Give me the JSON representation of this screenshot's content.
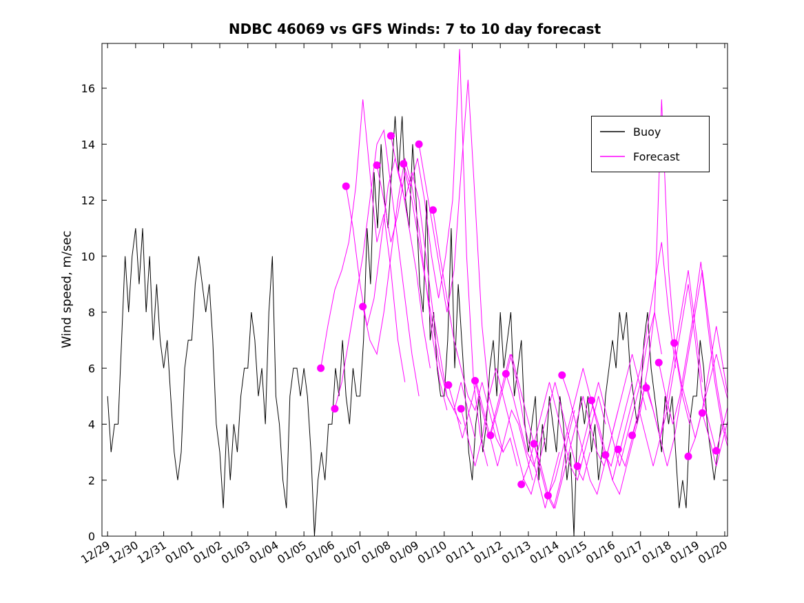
{
  "title": "NDBC 46069 vs GFS Winds: 7 to 10 day forecast",
  "ylabel": "Wind speed, m/sec",
  "legend": {
    "position": "upper right",
    "items": [
      {
        "label": "Buoy",
        "color": "#000000"
      },
      {
        "label": "Forecast",
        "color": "#ff00ff"
      }
    ]
  },
  "chart_data": {
    "type": "line",
    "title": "NDBC 46069 vs GFS Winds: 7 to 10 day forecast",
    "xlabel": "",
    "ylabel": "Wind speed, m/sec",
    "grid": false,
    "legend_position": "upper right",
    "ylim": [
      0,
      17.6
    ],
    "y_ticks": [
      0,
      2,
      4,
      6,
      8,
      10,
      12,
      14,
      16
    ],
    "xlim_days": [
      -0.2,
      22.1
    ],
    "x_unit": "days since 12/29, ticks at integer days",
    "x_tick_labels": [
      "12/29",
      "12/30",
      "12/31",
      "01/01",
      "01/02",
      "01/03",
      "01/04",
      "01/05",
      "01/06",
      "01/07",
      "01/08",
      "01/09",
      "01/10",
      "01/11",
      "01/12",
      "01/13",
      "01/14",
      "01/15",
      "01/16",
      "01/17",
      "01/18",
      "01/19",
      "01/20"
    ],
    "buoy_color": "#000000",
    "forecast_color": "#ff00ff",
    "buoy": {
      "name": "Buoy",
      "color": "#000000",
      "x_start": 0,
      "x_step": 0.125,
      "values": [
        5,
        3,
        4,
        4,
        7,
        10,
        8,
        10,
        11,
        9,
        11,
        8,
        10,
        7,
        9,
        7,
        6,
        7,
        5,
        3,
        2,
        3,
        6,
        7,
        7,
        9,
        10,
        9,
        8,
        9,
        7,
        4,
        3,
        1,
        4,
        2,
        4,
        3,
        5,
        6,
        6,
        8,
        7,
        5,
        6,
        4,
        8,
        10,
        5,
        4,
        2,
        1,
        5,
        6,
        6,
        5,
        6,
        5,
        3,
        0,
        2,
        3,
        2,
        4,
        4,
        6,
        5,
        7,
        5,
        4,
        6,
        5,
        5,
        7,
        11,
        9,
        13,
        11,
        14,
        12,
        11,
        13,
        15,
        13,
        15,
        12,
        11,
        14,
        12,
        9,
        8,
        12,
        7,
        8,
        6,
        5,
        5,
        7,
        11,
        6,
        9,
        7,
        5,
        3,
        2,
        4,
        5,
        3,
        4,
        6,
        7,
        5,
        8,
        6,
        7,
        8,
        5,
        6,
        7,
        4,
        3,
        4,
        5,
        2,
        4,
        3,
        5,
        4,
        3,
        5,
        4,
        2,
        3,
        0,
        4,
        5,
        4,
        5,
        3,
        4,
        2,
        3,
        5,
        6,
        7,
        6,
        8,
        7,
        8,
        6,
        5,
        4,
        5,
        7,
        8,
        6,
        5,
        4,
        3,
        5,
        4,
        5,
        3,
        1,
        2,
        1,
        4,
        5,
        5,
        7,
        6,
        4,
        3,
        2,
        3,
        4
      ]
    },
    "forecast_runs": [
      {
        "x_start": 7.6,
        "x_step": 0.25,
        "values": [
          6.0,
          7.5,
          8.8,
          9.5,
          10.5,
          12.5,
          15.6,
          13.0,
          10.5,
          11.5,
          9.5,
          7.0,
          5.5
        ]
      },
      {
        "x_start": 8.1,
        "x_step": 0.25,
        "values": [
          4.55,
          5.5,
          7.0,
          8.5,
          10.0,
          12.0,
          14.0,
          14.5,
          12.5,
          10.5,
          8.5,
          6.5,
          5.0
        ]
      },
      {
        "x_start": 8.5,
        "x_step": 0.25,
        "values": [
          12.5,
          11.0,
          9.0,
          7.5,
          8.5,
          10.5,
          12.5,
          13.5,
          12.5,
          11.0,
          9.5,
          7.5,
          6.0
        ]
      },
      {
        "x_start": 9.1,
        "x_step": 0.25,
        "values": [
          8.2,
          7.0,
          6.5,
          8.0,
          10.0,
          12.0,
          13.5,
          12.5,
          11.0,
          9.0,
          7.0,
          5.5,
          4.5
        ]
      },
      {
        "x_start": 9.6,
        "x_step": 0.25,
        "values": [
          13.25,
          12.0,
          10.5,
          11.5,
          13.0,
          12.0,
          10.5,
          9.0,
          7.5,
          6.0,
          5.0,
          4.5,
          4.0
        ]
      },
      {
        "x_start": 10.1,
        "x_step": 0.25,
        "values": [
          14.3,
          13.0,
          12.0,
          13.0,
          12.0,
          10.0,
          8.0,
          6.5,
          5.0,
          4.5,
          5.5,
          4.5,
          3.5
        ]
      },
      {
        "x_start": 10.55,
        "x_step": 0.25,
        "values": [
          13.3,
          12.5,
          13.5,
          12.0,
          10.0,
          8.5,
          10.0,
          12.0,
          17.4,
          10.0,
          5.5,
          3.5,
          2.5
        ]
      },
      {
        "x_start": 11.1,
        "x_step": 0.25,
        "values": [
          14.0,
          12.5,
          11.0,
          9.5,
          8.0,
          9.5,
          13.0,
          16.3,
          12.0,
          7.5,
          5.0,
          4.0,
          3.0
        ]
      },
      {
        "x_start": 11.6,
        "x_step": 0.25,
        "values": [
          11.65,
          10.0,
          8.5,
          7.0,
          6.0,
          5.0,
          4.5,
          5.5,
          4.5,
          3.5,
          3.0,
          3.5,
          2.5
        ]
      },
      {
        "x_start": 12.15,
        "x_step": 0.25,
        "values": [
          5.4,
          4.5,
          3.5,
          4.5,
          5.5,
          4.5,
          3.5,
          2.5,
          3.5,
          4.5,
          4.0,
          3.0,
          2.0
        ]
      },
      {
        "x_start": 12.6,
        "x_step": 0.25,
        "values": [
          4.55,
          3.5,
          2.5,
          3.5,
          5.0,
          6.0,
          5.0,
          4.0,
          3.0,
          2.0,
          1.5,
          2.5,
          3.5
        ]
      },
      {
        "x_start": 13.1,
        "x_step": 0.25,
        "values": [
          5.55,
          4.5,
          3.5,
          4.5,
          5.5,
          6.5,
          5.5,
          4.0,
          3.0,
          2.0,
          1.0,
          2.0,
          3.0
        ]
      },
      {
        "x_start": 13.65,
        "x_step": 0.25,
        "values": [
          3.6,
          4.5,
          5.5,
          6.5,
          5.5,
          4.5,
          3.5,
          2.5,
          1.5,
          1.0,
          2.0,
          3.5,
          4.5
        ]
      },
      {
        "x_start": 14.2,
        "x_step": 0.25,
        "values": [
          5.8,
          5.0,
          4.0,
          3.0,
          2.5,
          3.5,
          4.5,
          5.5,
          4.5,
          3.5,
          2.5,
          2.0,
          3.0
        ]
      },
      {
        "x_start": 14.75,
        "x_step": 0.25,
        "values": [
          1.85,
          2.5,
          3.5,
          4.5,
          5.5,
          4.5,
          3.5,
          2.5,
          2.0,
          3.0,
          4.0,
          5.0,
          4.0
        ]
      },
      {
        "x_start": 15.2,
        "x_step": 0.25,
        "values": [
          3.3,
          2.5,
          1.5,
          1.0,
          2.0,
          3.0,
          4.0,
          5.0,
          4.0,
          3.0,
          2.5,
          3.5,
          4.5
        ]
      },
      {
        "x_start": 15.7,
        "x_step": 0.25,
        "values": [
          1.45,
          2.0,
          3.0,
          4.0,
          5.0,
          6.0,
          5.0,
          4.0,
          3.0,
          2.5,
          3.5,
          4.5,
          5.5
        ]
      },
      {
        "x_start": 16.2,
        "x_step": 0.25,
        "values": [
          5.75,
          5.0,
          4.0,
          3.0,
          2.0,
          1.5,
          2.5,
          3.5,
          4.5,
          5.5,
          6.5,
          5.5,
          4.5
        ]
      },
      {
        "x_start": 16.75,
        "x_step": 0.25,
        "values": [
          2.5,
          3.5,
          4.5,
          5.5,
          4.5,
          3.5,
          2.5,
          3.5,
          4.5,
          5.5,
          7.0,
          8.0,
          6.5
        ]
      },
      {
        "x_start": 17.25,
        "x_step": 0.25,
        "values": [
          4.85,
          4.0,
          3.0,
          2.0,
          3.0,
          4.0,
          5.0,
          6.0,
          7.5,
          9.0,
          10.5,
          8.0,
          6.0
        ]
      },
      {
        "x_start": 17.75,
        "x_step": 0.25,
        "values": [
          2.9,
          2.0,
          1.5,
          2.5,
          3.5,
          4.5,
          6.0,
          8.0,
          15.6,
          9.5,
          6.5,
          5.0,
          4.0
        ]
      },
      {
        "x_start": 18.2,
        "x_step": 0.25,
        "values": [
          3.1,
          2.5,
          3.5,
          4.5,
          3.5,
          2.5,
          3.5,
          5.0,
          6.5,
          8.0,
          9.5,
          7.5,
          5.5
        ]
      },
      {
        "x_start": 18.7,
        "x_step": 0.25,
        "values": [
          3.6,
          4.5,
          5.5,
          4.5,
          3.5,
          4.5,
          6.0,
          7.5,
          9.0,
          7.0,
          5.0,
          4.0,
          3.0
        ]
      },
      {
        "x_start": 19.2,
        "x_step": 0.25,
        "values": [
          5.3,
          4.5,
          3.5,
          2.5,
          3.5,
          5.0,
          6.5,
          8.0,
          9.5,
          7.5,
          5.5,
          4.0,
          3.0
        ]
      },
      {
        "x_start": 19.65,
        "x_step": 0.25,
        "values": [
          6.2,
          5.0,
          4.0,
          5.0,
          6.5,
          8.0,
          9.8,
          7.5,
          5.5,
          4.0,
          3.0,
          4.0,
          5.0
        ]
      },
      {
        "x_start": 20.2,
        "x_step": 0.25,
        "values": [
          6.9,
          5.5,
          4.5,
          3.5,
          4.5,
          6.0,
          7.5,
          6.0,
          4.5,
          3.5,
          4.5,
          5.5,
          6.5
        ]
      },
      {
        "x_start": 20.7,
        "x_step": 0.25,
        "values": [
          2.85,
          3.5,
          4.5,
          5.5,
          6.5,
          5.5,
          4.5,
          3.5,
          4.5,
          5.5
        ]
      },
      {
        "x_start": 21.2,
        "x_step": 0.25,
        "values": [
          4.4,
          3.5,
          2.5,
          3.5,
          4.5,
          5.5,
          6.5,
          7.5
        ]
      },
      {
        "x_start": 21.7,
        "x_step": 0.25,
        "values": [
          3.05,
          4.0,
          5.0,
          6.5,
          7.5
        ]
      }
    ],
    "forecast_markers": {
      "x": [
        7.6,
        8.1,
        8.5,
        9.1,
        9.6,
        10.1,
        10.55,
        11.1,
        11.6,
        12.15,
        12.6,
        13.1,
        13.65,
        14.2,
        14.75,
        15.2,
        15.7,
        16.2,
        16.75,
        17.25,
        17.75,
        18.2,
        18.7,
        19.2,
        19.65,
        20.2,
        20.7,
        21.2,
        21.7
      ],
      "y": [
        6.0,
        4.55,
        12.5,
        8.2,
        13.25,
        14.3,
        13.3,
        14.0,
        11.65,
        5.4,
        4.55,
        5.55,
        3.6,
        5.8,
        1.85,
        3.3,
        1.45,
        5.75,
        2.5,
        4.85,
        2.9,
        3.1,
        3.6,
        5.3,
        6.2,
        6.9,
        2.85,
        4.4,
        3.05
      ]
    }
  }
}
